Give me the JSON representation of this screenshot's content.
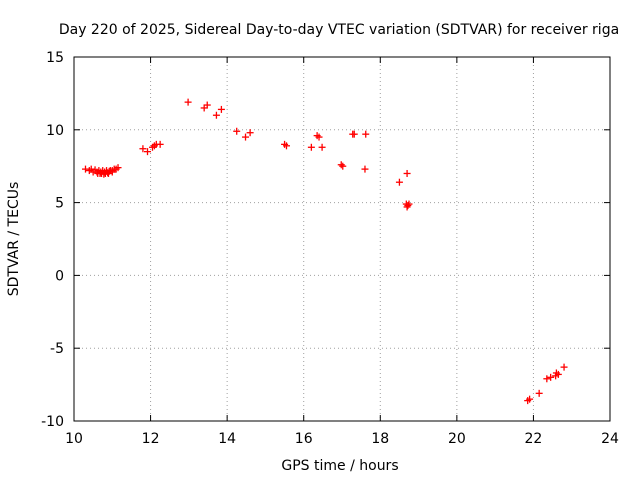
{
  "chart_data": {
    "type": "scatter",
    "title": "Day 220 of 2025, Sidereal Day-to-day VTEC variation (SDTVAR) for receiver riga",
    "xlabel": "GPS time / hours",
    "ylabel": "SDTVAR / TECUs",
    "xlim": [
      10,
      24
    ],
    "ylim": [
      -10,
      15
    ],
    "xticks": [
      10,
      12,
      14,
      16,
      18,
      20,
      22,
      24
    ],
    "yticks": [
      -10,
      -5,
      0,
      5,
      10,
      15
    ],
    "xtick_labels": [
      "10",
      "12",
      "14",
      "16",
      "18",
      "20",
      "22",
      "24"
    ],
    "ytick_labels": [
      "-10",
      "-5",
      "0",
      "5",
      "10",
      "15"
    ],
    "grid": true,
    "marker": "+",
    "color": "#ff0000",
    "series": [
      {
        "name": "SDTVAR",
        "points": [
          [
            10.3,
            7.3
          ],
          [
            10.4,
            7.2
          ],
          [
            10.45,
            7.3
          ],
          [
            10.5,
            7.1
          ],
          [
            10.55,
            7.25
          ],
          [
            10.6,
            7.1
          ],
          [
            10.62,
            7.0
          ],
          [
            10.65,
            7.2
          ],
          [
            10.68,
            7.0
          ],
          [
            10.7,
            7.1
          ],
          [
            10.72,
            7.0
          ],
          [
            10.75,
            7.2
          ],
          [
            10.78,
            6.95
          ],
          [
            10.8,
            7.1
          ],
          [
            10.82,
            7.0
          ],
          [
            10.85,
            7.2
          ],
          [
            10.88,
            7.05
          ],
          [
            10.9,
            7.0
          ],
          [
            10.95,
            7.2
          ],
          [
            11.0,
            7.2
          ],
          [
            11.05,
            7.3
          ],
          [
            11.1,
            7.3
          ],
          [
            11.15,
            7.4
          ],
          [
            11.0,
            7.1
          ],
          [
            10.92,
            7.15
          ],
          [
            11.8,
            8.7
          ],
          [
            11.92,
            8.5
          ],
          [
            12.05,
            8.8
          ],
          [
            12.1,
            8.9
          ],
          [
            12.15,
            9.0
          ],
          [
            12.25,
            9.0
          ],
          [
            12.98,
            11.9
          ],
          [
            13.4,
            11.5
          ],
          [
            13.48,
            11.7
          ],
          [
            13.72,
            11.0
          ],
          [
            13.85,
            11.4
          ],
          [
            14.25,
            9.9
          ],
          [
            14.48,
            9.5
          ],
          [
            14.6,
            9.8
          ],
          [
            15.5,
            9.0
          ],
          [
            15.55,
            8.9
          ],
          [
            16.2,
            8.8
          ],
          [
            16.35,
            9.6
          ],
          [
            16.4,
            9.5
          ],
          [
            16.48,
            8.8
          ],
          [
            16.98,
            7.6
          ],
          [
            17.02,
            7.5
          ],
          [
            17.28,
            9.7
          ],
          [
            17.32,
            9.7
          ],
          [
            17.62,
            9.7
          ],
          [
            17.6,
            7.3
          ],
          [
            18.5,
            6.4
          ],
          [
            18.7,
            7.0
          ],
          [
            18.68,
            4.9
          ],
          [
            18.72,
            4.8
          ],
          [
            18.75,
            4.9
          ],
          [
            18.7,
            4.7
          ],
          [
            21.85,
            -8.6
          ],
          [
            21.9,
            -8.5
          ],
          [
            22.15,
            -8.1
          ],
          [
            22.35,
            -7.1
          ],
          [
            22.45,
            -7.0
          ],
          [
            22.58,
            -6.9
          ],
          [
            22.6,
            -6.7
          ],
          [
            22.65,
            -6.8
          ],
          [
            22.8,
            -6.3
          ]
        ]
      }
    ]
  }
}
